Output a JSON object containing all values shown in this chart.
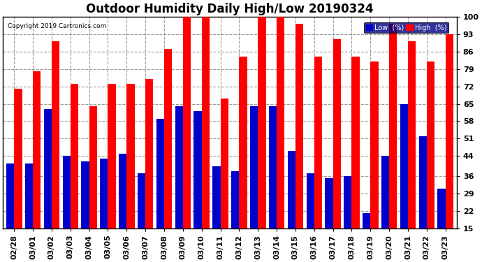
{
  "title": "Outdoor Humidity Daily High/Low 20190324",
  "copyright": "Copyright 2019 Cartronics.com",
  "dates": [
    "02/28",
    "03/01",
    "03/02",
    "03/03",
    "03/04",
    "03/05",
    "03/06",
    "03/07",
    "03/08",
    "03/09",
    "03/10",
    "03/11",
    "03/12",
    "03/13",
    "03/14",
    "03/15",
    "03/16",
    "03/17",
    "03/18",
    "03/19",
    "03/20",
    "03/21",
    "03/22",
    "03/23"
  ],
  "high": [
    71,
    78,
    90,
    73,
    64,
    73,
    73,
    75,
    87,
    100,
    100,
    67,
    84,
    100,
    100,
    97,
    84,
    91,
    84,
    82,
    97,
    90,
    82,
    93
  ],
  "low": [
    41,
    41,
    63,
    44,
    42,
    43,
    45,
    37,
    59,
    64,
    62,
    40,
    38,
    64,
    64,
    46,
    37,
    35,
    36,
    21,
    44,
    65,
    52,
    31
  ],
  "high_color": "#ff0000",
  "low_color": "#0000cc",
  "background_color": "#ffffff",
  "plot_bg_color": "#ffffff",
  "grid_color": "#999999",
  "yticks": [
    15,
    22,
    29,
    36,
    44,
    51,
    58,
    65,
    72,
    79,
    86,
    93,
    100
  ],
  "ymin": 15,
  "ymax": 100,
  "bar_width": 0.42,
  "title_fontsize": 12,
  "tick_fontsize": 8,
  "legend_label_low": "Low  (%)",
  "legend_label_high": "High  (%)"
}
